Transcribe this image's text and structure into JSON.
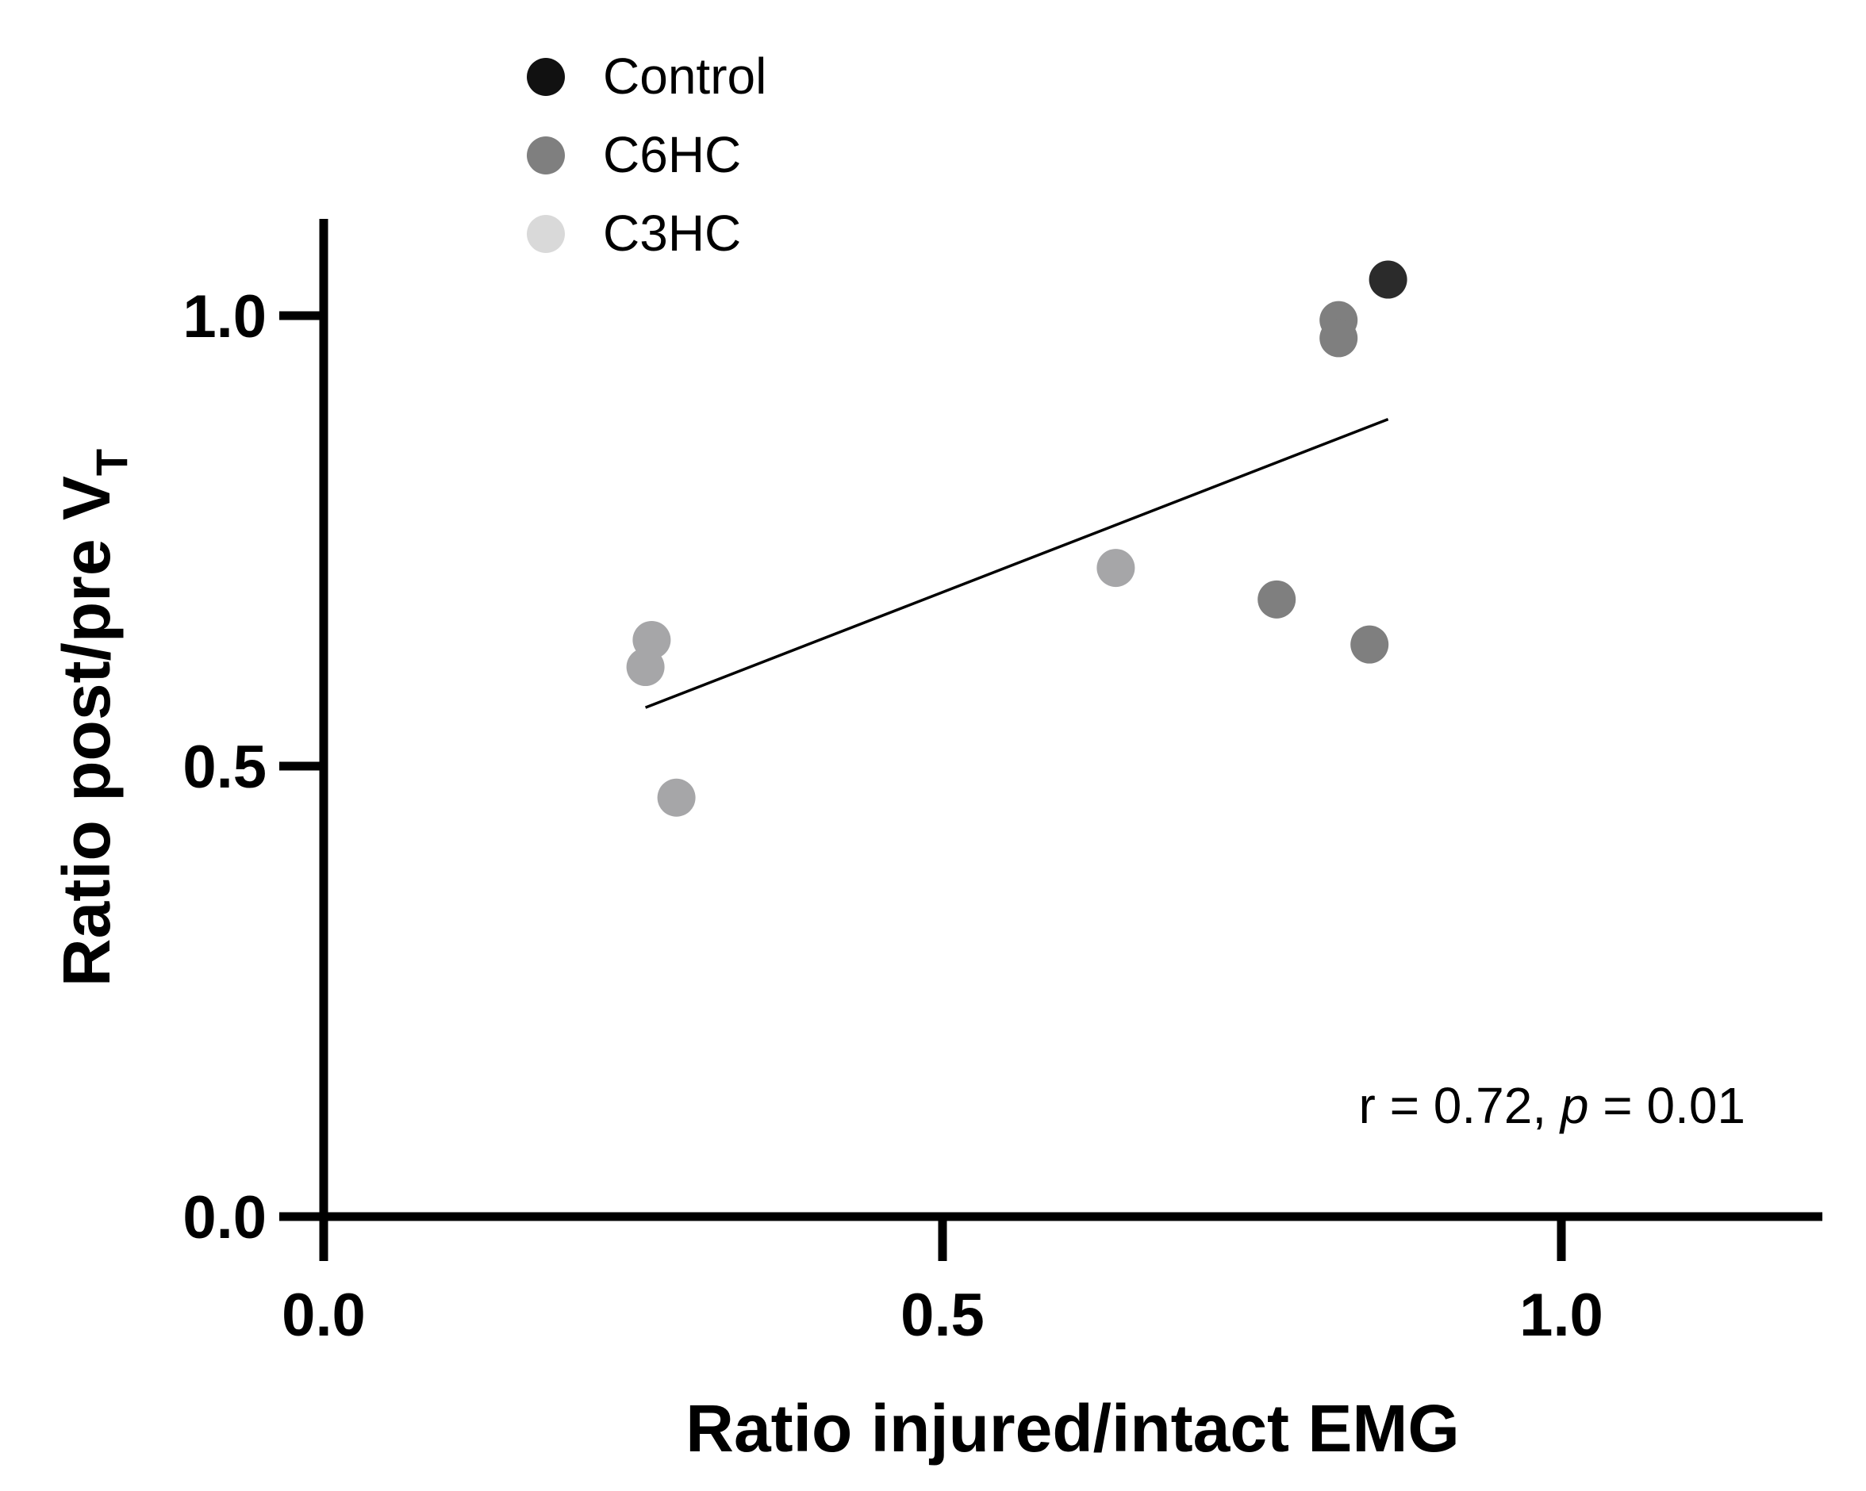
{
  "chart_data": {
    "type": "scatter",
    "title": "",
    "xlabel": "Ratio injured/intact EMG",
    "ylabel": {
      "main": "Ratio post/pre V",
      "subscript": "T"
    },
    "xlim": [
      0.0,
      1.2
    ],
    "ylim": [
      0.0,
      1.1
    ],
    "xticks": [
      0.0,
      0.5,
      1.0
    ],
    "xtick_labels": [
      "0.0",
      "0.5",
      "1.0"
    ],
    "yticks": [
      0.0,
      0.5,
      1.0
    ],
    "ytick_labels": [
      "0.0",
      "0.5",
      "1.0"
    ],
    "legend_position": "top-left",
    "series": [
      {
        "name": "Control",
        "color": "#2b2b2b",
        "points": [
          [
            0.86,
            1.04
          ]
        ]
      },
      {
        "name": "C6HC",
        "color": "#7f7f7f",
        "points": [
          [
            0.82,
            0.995
          ],
          [
            0.82,
            0.975
          ],
          [
            0.77,
            0.685
          ],
          [
            0.845,
            0.635
          ]
        ]
      },
      {
        "name": "C3HC",
        "color": "#a6a6a8",
        "points": [
          [
            0.265,
            0.64
          ],
          [
            0.26,
            0.61
          ],
          [
            0.285,
            0.465
          ],
          [
            0.64,
            0.72
          ]
        ]
      }
    ],
    "legend_colors": [
      "#111111",
      "#7f7f7f",
      "#d9d9d9"
    ],
    "regression_line": {
      "x": [
        0.26,
        0.86
      ],
      "y": [
        0.565,
        0.885
      ]
    },
    "annotation": {
      "r_text": "r = 0.72, ",
      "p_symbol": "p",
      "p_text": " = 0.01"
    }
  }
}
